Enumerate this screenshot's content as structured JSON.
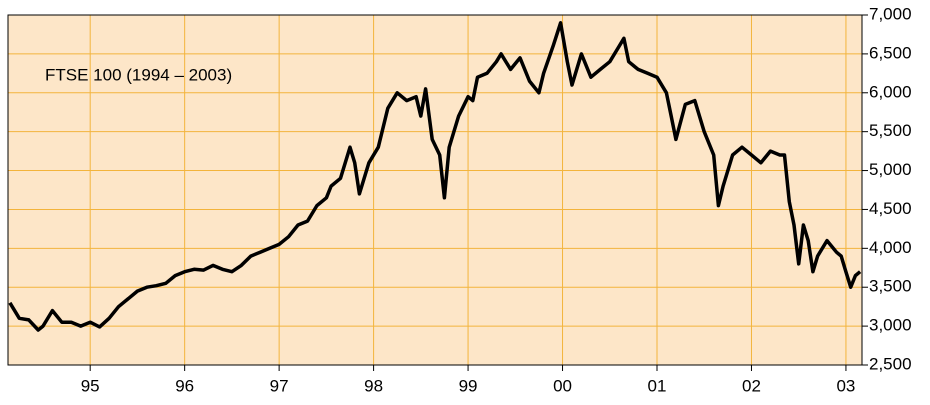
{
  "chart_data": {
    "type": "line",
    "title": "FTSE 100 (1994 – 2003)",
    "x": [
      1994.15,
      1994.25,
      1994.35,
      1994.45,
      1994.5,
      1994.6,
      1994.7,
      1994.8,
      1994.9,
      1995.0,
      1995.1,
      1995.2,
      1995.3,
      1995.4,
      1995.5,
      1995.6,
      1995.7,
      1995.8,
      1995.9,
      1996.0,
      1996.1,
      1996.2,
      1996.3,
      1996.4,
      1996.5,
      1996.6,
      1996.7,
      1996.8,
      1996.9,
      1997.0,
      1997.1,
      1997.2,
      1997.3,
      1997.4,
      1997.5,
      1997.55,
      1997.65,
      1997.75,
      1997.8,
      1997.85,
      1997.95,
      1998.05,
      1998.15,
      1998.25,
      1998.35,
      1998.45,
      1998.5,
      1998.55,
      1998.62,
      1998.7,
      1998.75,
      1998.8,
      1998.9,
      1999.0,
      1999.05,
      1999.1,
      1999.2,
      1999.3,
      1999.35,
      1999.45,
      1999.55,
      1999.65,
      1999.75,
      1999.8,
      1999.9,
      1999.98,
      2000.05,
      2000.1,
      2000.2,
      2000.3,
      2000.4,
      2000.5,
      2000.6,
      2000.65,
      2000.7,
      2000.8,
      2000.9,
      2001.0,
      2001.1,
      2001.15,
      2001.2,
      2001.3,
      2001.4,
      2001.5,
      2001.6,
      2001.65,
      2001.7,
      2001.8,
      2001.9,
      2002.0,
      2002.1,
      2002.2,
      2002.3,
      2002.35,
      2002.4,
      2002.45,
      2002.5,
      2002.55,
      2002.6,
      2002.65,
      2002.7,
      2002.8,
      2002.9,
      2002.95,
      2003.0,
      2003.05,
      2003.1,
      2003.15
    ],
    "values": [
      3300,
      3100,
      3080,
      2950,
      3000,
      3200,
      3050,
      3050,
      3000,
      3050,
      2990,
      3100,
      3250,
      3350,
      3450,
      3500,
      3520,
      3550,
      3650,
      3700,
      3730,
      3720,
      3780,
      3730,
      3700,
      3780,
      3900,
      3950,
      4000,
      4050,
      4150,
      4300,
      4350,
      4550,
      4650,
      4800,
      4900,
      5300,
      5100,
      4700,
      5100,
      5300,
      5800,
      6000,
      5900,
      5950,
      5700,
      6050,
      5400,
      5200,
      4650,
      5300,
      5700,
      5950,
      5900,
      6200,
      6250,
      6400,
      6500,
      6300,
      6450,
      6150,
      6000,
      6250,
      6600,
      6900,
      6400,
      6100,
      6500,
      6200,
      6300,
      6400,
      6600,
      6700,
      6400,
      6300,
      6250,
      6200,
      6000,
      5700,
      5400,
      5850,
      5900,
      5500,
      5200,
      4550,
      4800,
      5200,
      5300,
      5200,
      5100,
      5250,
      5200,
      5200,
      4600,
      4300,
      3800,
      4300,
      4100,
      3700,
      3900,
      4100,
      3950,
      3900,
      3700,
      3500,
      3650,
      3700
    ],
    "color": "#000000",
    "xlim": [
      1994.13,
      2003.17
    ],
    "xticks": [
      {
        "value": 1995,
        "label": "95"
      },
      {
        "value": 1996,
        "label": "96"
      },
      {
        "value": 1997,
        "label": "97"
      },
      {
        "value": 1998,
        "label": "98"
      },
      {
        "value": 1999,
        "label": "99"
      },
      {
        "value": 2000,
        "label": "00"
      },
      {
        "value": 2001,
        "label": "01"
      },
      {
        "value": 2002,
        "label": "02"
      },
      {
        "value": 2003,
        "label": "03"
      }
    ],
    "ylim": [
      2500,
      7000
    ],
    "yticks": [
      {
        "value": 2500,
        "label": "2,500"
      },
      {
        "value": 3000,
        "label": "3,000"
      },
      {
        "value": 3500,
        "label": "3,500"
      },
      {
        "value": 4000,
        "label": "4,000"
      },
      {
        "value": 4500,
        "label": "4,500"
      },
      {
        "value": 5000,
        "label": "5,000"
      },
      {
        "value": 5500,
        "label": "5,500"
      },
      {
        "value": 6000,
        "label": "6,000"
      },
      {
        "value": 6500,
        "label": "6,500"
      },
      {
        "value": 7000,
        "label": "7,000"
      }
    ],
    "grid": true
  }
}
